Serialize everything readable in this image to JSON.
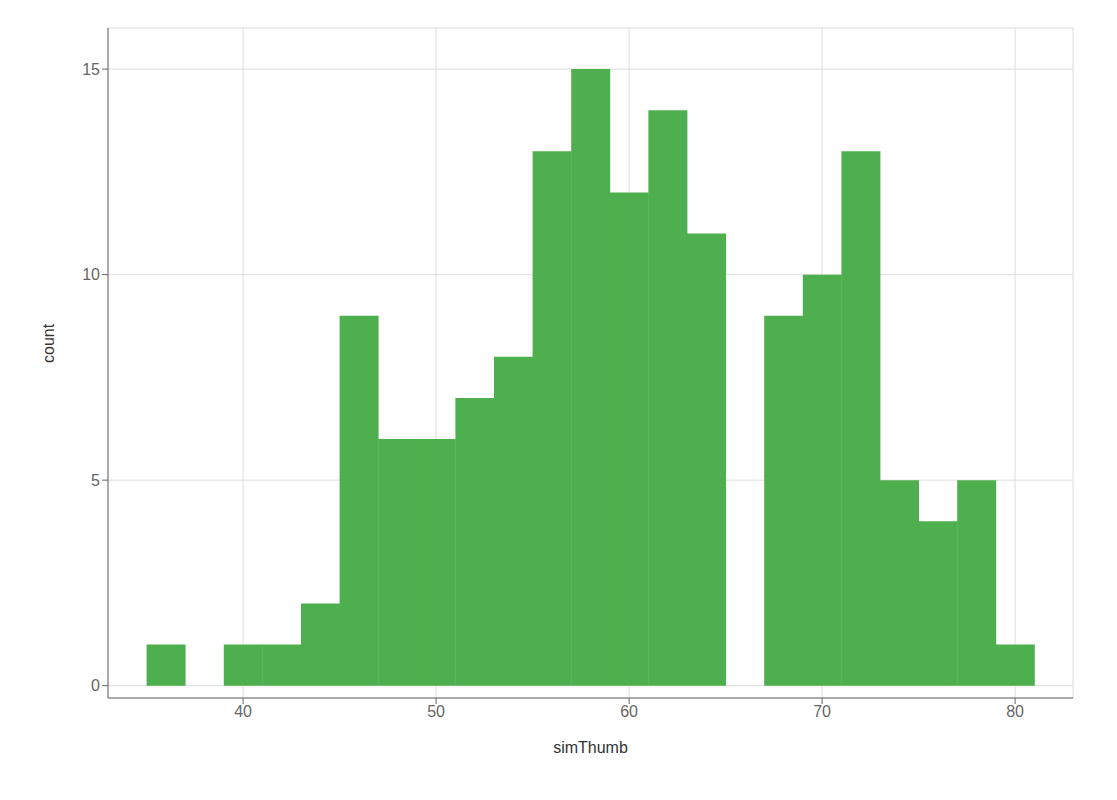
{
  "chart_data": {
    "type": "histogram",
    "bins": [
      35,
      37,
      39,
      41,
      43,
      45,
      47,
      49,
      51,
      53,
      55,
      57,
      59,
      61,
      63,
      65,
      67,
      69,
      71,
      73,
      75,
      77,
      79,
      81
    ],
    "values": [
      1,
      0,
      1,
      1,
      2,
      9,
      6,
      6,
      7,
      8,
      13,
      15,
      12,
      14,
      11,
      0,
      9,
      10,
      13,
      5,
      4,
      5,
      1
    ],
    "color": "#4daf4d",
    "xlabel": "simThumb",
    "ylabel": "count",
    "xlim": [
      33,
      83
    ],
    "ylim": [
      -0.3,
      16
    ],
    "xticks": [
      40,
      50,
      60,
      70,
      80
    ],
    "yticks": [
      0,
      5,
      10,
      15
    ],
    "grid": true
  }
}
